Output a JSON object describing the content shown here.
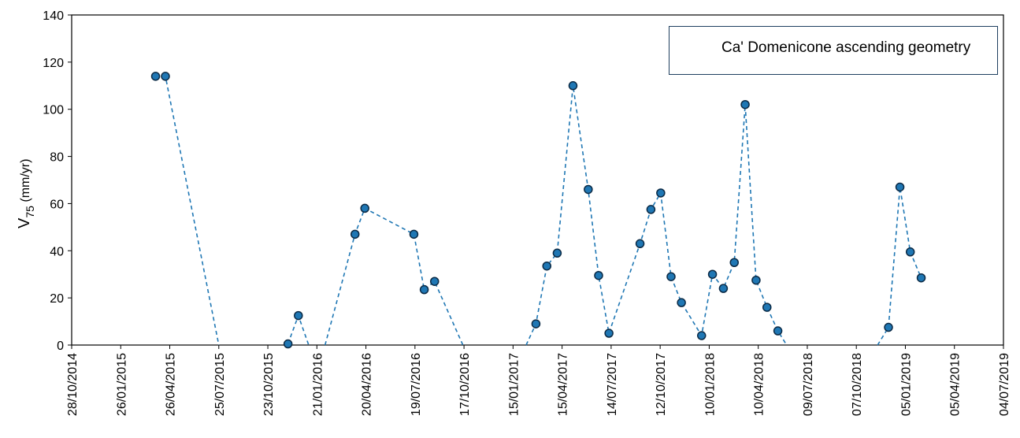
{
  "chart_data": {
    "type": "line",
    "title": "",
    "xlabel": "",
    "ylabel": "V",
    "ylabel_sub": "75",
    "ylabel_unit": " (mm/yr)",
    "ylim": [
      0,
      140
    ],
    "yticks": [
      0,
      20,
      40,
      60,
      80,
      100,
      120,
      140
    ],
    "xlim": [
      "2014-10-28",
      "2019-07-04"
    ],
    "xtick_labels": [
      "28/10/2014",
      "26/01/2015",
      "26/04/2015",
      "25/07/2015",
      "23/10/2015",
      "21/01/2016",
      "20/04/2016",
      "19/07/2016",
      "17/10/2016",
      "15/01/2017",
      "15/04/2017",
      "14/07/2017",
      "12/10/2017",
      "10/01/2018",
      "10/04/2018",
      "09/07/2018",
      "07/10/2018",
      "05/01/2019",
      "05/04/2019",
      "04/07/2019"
    ],
    "grid": false,
    "legend": "top-right",
    "series": [
      {
        "name": "Ca' Domenicone ascending geometry",
        "color": "#1f77b4",
        "line_style": "dashed",
        "marker": "circle",
        "segments": [
          [
            {
              "x": "2015-03-31",
              "y": 114
            },
            {
              "x": "2015-04-18",
              "y": 114
            },
            {
              "x": "2015-07-25",
              "y": 0
            }
          ],
          [
            {
              "x": "2015-11-29",
              "y": 0.5
            },
            {
              "x": "2015-12-18",
              "y": 12.5
            },
            {
              "x": "2016-01-06",
              "y": 0
            }
          ],
          [
            {
              "x": "2016-02-05",
              "y": 0
            },
            {
              "x": "2016-03-31",
              "y": 47
            },
            {
              "x": "2016-04-18",
              "y": 58
            },
            {
              "x": "2016-07-17",
              "y": 47
            },
            {
              "x": "2016-08-05",
              "y": 23.5
            },
            {
              "x": "2016-08-24",
              "y": 27
            },
            {
              "x": "2016-10-15",
              "y": 0
            }
          ],
          [
            {
              "x": "2017-02-08",
              "y": 0
            },
            {
              "x": "2017-02-26",
              "y": 9
            },
            {
              "x": "2017-03-18",
              "y": 33.5
            },
            {
              "x": "2017-04-06",
              "y": 39
            },
            {
              "x": "2017-05-05",
              "y": 110
            },
            {
              "x": "2017-06-02",
              "y": 66
            },
            {
              "x": "2017-06-21",
              "y": 29.5
            },
            {
              "x": "2017-07-10",
              "y": 5
            },
            {
              "x": "2017-09-05",
              "y": 43
            },
            {
              "x": "2017-09-25",
              "y": 57.5
            },
            {
              "x": "2017-10-13",
              "y": 64.5
            },
            {
              "x": "2017-11-01",
              "y": 29
            },
            {
              "x": "2017-11-20",
              "y": 18
            },
            {
              "x": "2017-12-27",
              "y": 4
            },
            {
              "x": "2018-01-16",
              "y": 30
            },
            {
              "x": "2018-02-05",
              "y": 24
            },
            {
              "x": "2018-02-25",
              "y": 35
            },
            {
              "x": "2018-03-17",
              "y": 102
            },
            {
              "x": "2018-04-06",
              "y": 27.5
            },
            {
              "x": "2018-04-26",
              "y": 16
            },
            {
              "x": "2018-05-16",
              "y": 6
            },
            {
              "x": "2018-06-01",
              "y": 0
            }
          ],
          [
            {
              "x": "2018-11-15",
              "y": 0
            },
            {
              "x": "2018-12-05",
              "y": 7.5
            },
            {
              "x": "2018-12-26",
              "y": 67
            },
            {
              "x": "2019-01-14",
              "y": 39.5
            },
            {
              "x": "2019-02-03",
              "y": 28.5
            }
          ]
        ]
      }
    ]
  }
}
